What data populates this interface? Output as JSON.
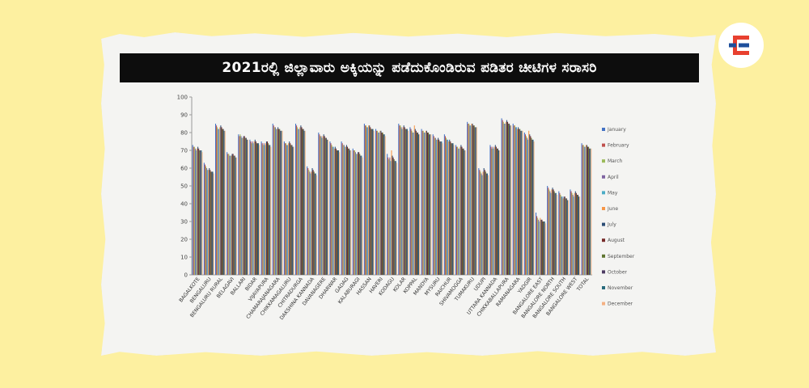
{
  "title": "2021ರಲ್ಲಿ ಜಿಲ್ಲಾವಾರು ಅಕ್ಕಿಯನ್ನು ಪಡೆದುಕೊಂಡಿರುವ ಪಡಿತರ ಚೀಟಿಗಳ ಸರಾಸರಿ",
  "logo": {
    "icon": "e-logo-icon",
    "accent": "#e8402f"
  },
  "chart_data": {
    "type": "bar",
    "ylim": [
      0,
      100
    ],
    "yticks": [
      "0",
      "10",
      "20",
      "30",
      "40",
      "50",
      "60",
      "70",
      "80",
      "90",
      "100"
    ],
    "grid": false,
    "legend_position": "right",
    "categories": [
      "BAGALKOTE",
      "BENGALURU",
      "BENGALURU RURAL",
      "BELAGAVI",
      "BALLARI",
      "BIDAR",
      "VIJAYAPURA",
      "CHAMARAJANAGARA",
      "CHIKKAMAGALURU",
      "CHITRADURGA",
      "DAKSHINA KANNADA",
      "DAVANAGERE",
      "DHARWAR",
      "GADAG",
      "KALABURAGI",
      "HASSAN",
      "HAVERI",
      "KODAGU",
      "KOLAR",
      "KOPPAL",
      "MANDYA",
      "MYSURU",
      "RAICHUR",
      "SHIVAMOGGA",
      "TUMAKURU",
      "UDUPI",
      "UTTARA KANNADA",
      "CHIKKABALLAPURA",
      "RAMANAGARA",
      "YADGIR",
      "BANGALORE EAST",
      "BANGALORE NORTH",
      "BANGALORE SOUTH",
      "BANGALORE WEST",
      "TOTAL"
    ],
    "series": [
      {
        "name": "January",
        "color": "#4472c4",
        "values": [
          73,
          63,
          85,
          69,
          79,
          76,
          75,
          85,
          75,
          85,
          61,
          80,
          75,
          75,
          71,
          85,
          82,
          68,
          85,
          83,
          82,
          79,
          79,
          73,
          86,
          60,
          73,
          88,
          85,
          80,
          35,
          50,
          47,
          48,
          74
        ]
      },
      {
        "name": "February",
        "color": "#c0504d",
        "values": [
          72,
          62,
          84,
          68,
          78,
          75,
          74,
          84,
          74,
          84,
          60,
          79,
          74,
          74,
          70,
          84,
          81,
          66,
          84,
          82,
          81,
          78,
          78,
          72,
          85,
          59,
          72,
          87,
          84,
          79,
          33,
          49,
          46,
          47,
          73
        ]
      },
      {
        "name": "March",
        "color": "#9bbb59",
        "values": [
          72,
          61,
          83,
          68,
          79,
          74,
          73,
          83,
          74,
          83,
          59,
          78,
          73,
          73,
          70,
          84,
          81,
          65,
          84,
          81,
          81,
          77,
          77,
          72,
          85,
          58,
          71,
          86,
          84,
          78,
          32,
          48,
          45,
          46,
          73
        ]
      },
      {
        "name": "April",
        "color": "#8064a2",
        "values": [
          71,
          60,
          82,
          67,
          78,
          75,
          74,
          83,
          73,
          82,
          58,
          78,
          72,
          73,
          69,
          83,
          80,
          66,
          83,
          80,
          80,
          77,
          76,
          71,
          84,
          57,
          72,
          85,
          83,
          77,
          31,
          47,
          44,
          45,
          72
        ]
      },
      {
        "name": "May",
        "color": "#4bacc6",
        "values": [
          70,
          59,
          82,
          67,
          77,
          74,
          73,
          82,
          73,
          82,
          57,
          77,
          72,
          72,
          68,
          83,
          80,
          64,
          82,
          80,
          80,
          76,
          76,
          71,
          84,
          56,
          71,
          85,
          83,
          76,
          30,
          46,
          44,
          44,
          72
        ]
      },
      {
        "name": "June",
        "color": "#f79646",
        "values": [
          71,
          59,
          83,
          67,
          77,
          75,
          74,
          82,
          74,
          83,
          58,
          78,
          71,
          72,
          68,
          84,
          81,
          70,
          83,
          84,
          81,
          76,
          75,
          72,
          85,
          58,
          72,
          86,
          82,
          81,
          32,
          48,
          43,
          46,
          73
        ]
      },
      {
        "name": "July",
        "color": "#2c4d75",
        "values": [
          72,
          60,
          84,
          68,
          78,
          76,
          75,
          83,
          75,
          84,
          60,
          79,
          72,
          73,
          69,
          84,
          81,
          67,
          84,
          82,
          81,
          77,
          76,
          73,
          85,
          60,
          73,
          87,
          83,
          79,
          31,
          49,
          44,
          47,
          73
        ]
      },
      {
        "name": "August",
        "color": "#772c2a",
        "values": [
          71,
          59,
          83,
          68,
          78,
          75,
          75,
          82,
          74,
          83,
          59,
          78,
          71,
          72,
          69,
          83,
          80,
          66,
          83,
          81,
          80,
          76,
          75,
          72,
          84,
          59,
          72,
          86,
          82,
          78,
          31,
          48,
          44,
          46,
          72
        ]
      },
      {
        "name": "September",
        "color": "#5f7530",
        "values": [
          70,
          58,
          82,
          67,
          77,
          74,
          74,
          82,
          73,
          82,
          58,
          77,
          70,
          71,
          68,
          82,
          80,
          65,
          82,
          80,
          80,
          75,
          74,
          71,
          84,
          58,
          71,
          85,
          82,
          77,
          30,
          47,
          43,
          45,
          72
        ]
      },
      {
        "name": "October",
        "color": "#4d3b62",
        "values": [
          70,
          58,
          82,
          67,
          77,
          74,
          73,
          81,
          73,
          82,
          57,
          77,
          70,
          71,
          67,
          82,
          79,
          64,
          82,
          80,
          79,
          75,
          74,
          71,
          83,
          57,
          71,
          85,
          81,
          76,
          30,
          46,
          43,
          45,
          71
        ]
      },
      {
        "name": "November",
        "color": "#276a7c",
        "values": [
          70,
          58,
          81,
          66,
          76,
          74,
          73,
          81,
          72,
          81,
          57,
          76,
          70,
          70,
          67,
          82,
          79,
          64,
          82,
          79,
          79,
          75,
          74,
          70,
          83,
          57,
          70,
          84,
          81,
          76,
          30,
          46,
          42,
          44,
          71
        ]
      },
      {
        "name": "December",
        "color": "#f4b183",
        "values": [
          69,
          57,
          81,
          66,
          76,
          73,
          72,
          81,
          72,
          81,
          56,
          76,
          69,
          70,
          66,
          81,
          78,
          63,
          81,
          79,
          79,
          74,
          73,
          70,
          83,
          56,
          70,
          84,
          81,
          75,
          29,
          45,
          42,
          44,
          71
        ]
      }
    ]
  }
}
